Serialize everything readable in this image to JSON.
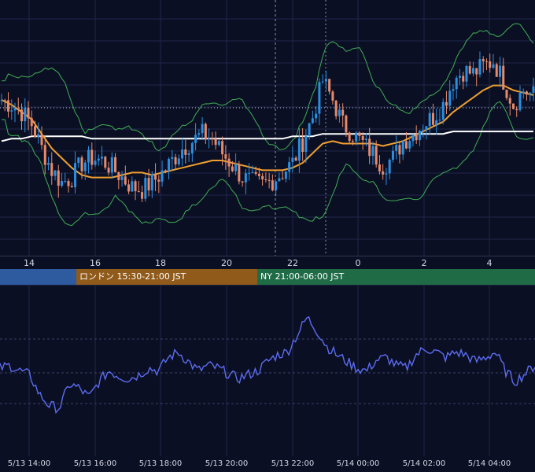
{
  "chart_data": [
    {
      "type": "candlestick",
      "panel": "price",
      "colors": {
        "up": "#2a8fe0",
        "down": "#e88a6a",
        "ma_fast": "#f0a030",
        "ma_slow": "#ffffff",
        "bands": "#3fae55",
        "grid": "#1f2747",
        "background": "#0b0f24"
      },
      "x_tick_labels": [
        "14",
        "16",
        "18",
        "20",
        "22",
        "0",
        "2",
        "4"
      ],
      "price_min": 0,
      "price_max": 100,
      "closes_sampled": [
        62,
        60,
        57,
        52,
        42,
        33,
        28,
        30,
        36,
        38,
        37,
        34,
        30,
        26,
        25,
        28,
        32,
        37,
        42,
        45,
        48,
        46,
        40,
        35,
        30,
        28,
        27,
        29,
        32,
        36,
        45,
        55,
        70,
        62,
        52,
        48,
        44,
        40,
        35,
        38,
        45,
        48,
        52,
        55,
        60,
        70,
        74,
        73,
        76,
        78,
        70,
        60,
        66,
        64
      ],
      "ma_fast_sampled": [
        62,
        60,
        57,
        54,
        48,
        42,
        38,
        34,
        31,
        30,
        30,
        30,
        31,
        32,
        32,
        31,
        32,
        33,
        34,
        35,
        36,
        37,
        37,
        36,
        35,
        34,
        33,
        33,
        33,
        34,
        36,
        40,
        44,
        45,
        44,
        44,
        44,
        44,
        43,
        44,
        45,
        47,
        49,
        51,
        53,
        57,
        60,
        63,
        66,
        68,
        68,
        66,
        65,
        64
      ],
      "ma_slow_sampled": [
        45,
        46,
        46,
        47,
        47,
        47,
        47,
        47,
        47,
        46,
        46,
        46,
        46,
        46,
        46,
        46,
        46,
        46,
        46,
        46,
        46,
        46,
        46,
        46,
        46,
        46,
        46,
        46,
        46,
        47,
        47,
        47,
        48,
        48,
        48,
        48,
        48,
        48,
        48,
        48,
        48,
        48,
        48,
        48,
        48,
        49,
        49,
        49,
        49,
        49,
        49,
        49,
        49,
        49
      ]
    },
    {
      "type": "line",
      "panel": "oscillator",
      "color": "#5b6cf0",
      "x_tick_labels": [
        "5/13 14:00",
        "5/13 16:00",
        "5/13 18:00",
        "5/13 20:00",
        "5/13 22:00",
        "5/14 00:00",
        "5/14 02:00",
        "5/14 04:00"
      ],
      "values_sampled": [
        50,
        52,
        48,
        45,
        30,
        22,
        20,
        38,
        35,
        28,
        40,
        48,
        44,
        42,
        45,
        50,
        48,
        58,
        62,
        55,
        48,
        52,
        50,
        46,
        42,
        45,
        48,
        55,
        60,
        62,
        75,
        88,
        78,
        66,
        60,
        55,
        50,
        48,
        56,
        58,
        52,
        50,
        60,
        65,
        62,
        58,
        62,
        60,
        55,
        58,
        62,
        48,
        40,
        46,
        52
      ]
    }
  ],
  "sessions": [
    {
      "label": "",
      "color": "#2e5aa0"
    },
    {
      "label": "ロンドン 15:30-21:00 JST",
      "color": "#8f5a1a"
    },
    {
      "label": "NY 21:00-06:00 JST",
      "color": "#1e6b46"
    }
  ]
}
